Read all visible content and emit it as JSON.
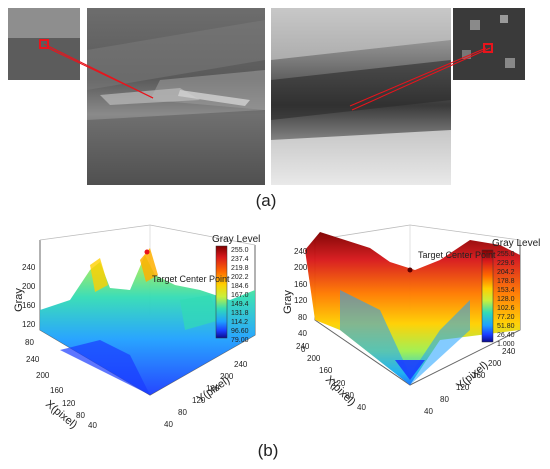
{
  "figure": {
    "label_a": "(a)",
    "label_b": "(b)"
  },
  "plots": [
    {
      "legend_title": "Gray Level",
      "legend_ticks": [
        "255.0",
        "237.4",
        "219.8",
        "202.2",
        "184.6",
        "167.0",
        "149.4",
        "131.8",
        "114.2",
        "96.60",
        "79.00"
      ],
      "annotation": "Target Center Point",
      "z_axis_label": "Gray",
      "x_axis_label": "X(pixel)",
      "y_axis_label": "Y(pixel)",
      "z_ticks": [
        "80",
        "120",
        "160",
        "200",
        "240"
      ],
      "x_ticks": [
        "40",
        "80",
        "120",
        "160",
        "200",
        "240"
      ],
      "y_ticks": [
        "40",
        "80",
        "120",
        "160",
        "200",
        "240"
      ]
    },
    {
      "legend_title": "Gray Level",
      "legend_ticks": [
        "255.0",
        "229.6",
        "204.2",
        "178.8",
        "153.4",
        "128.0",
        "102.6",
        "77.20",
        "51.80",
        "26.40",
        "1.000"
      ],
      "annotation": "Target Center Point",
      "z_axis_label": "Gray",
      "x_axis_label": "X(pixel)",
      "y_axis_label": "Y(pixel)",
      "z_ticks": [
        "0",
        "40",
        "80",
        "120",
        "160",
        "200",
        "240"
      ],
      "x_ticks": [
        "40",
        "80",
        "120",
        "160",
        "200",
        "240"
      ],
      "y_ticks": [
        "40",
        "80",
        "120",
        "160",
        "200",
        "240"
      ]
    }
  ],
  "colors": {
    "highlight": "#e8141c",
    "colormap": [
      "#7f0000",
      "#d7191c",
      "#ff6a00",
      "#ffd000",
      "#c8f03c",
      "#32dcb4",
      "#1ea0ff",
      "#1a3cff",
      "#0a0a8c"
    ]
  }
}
